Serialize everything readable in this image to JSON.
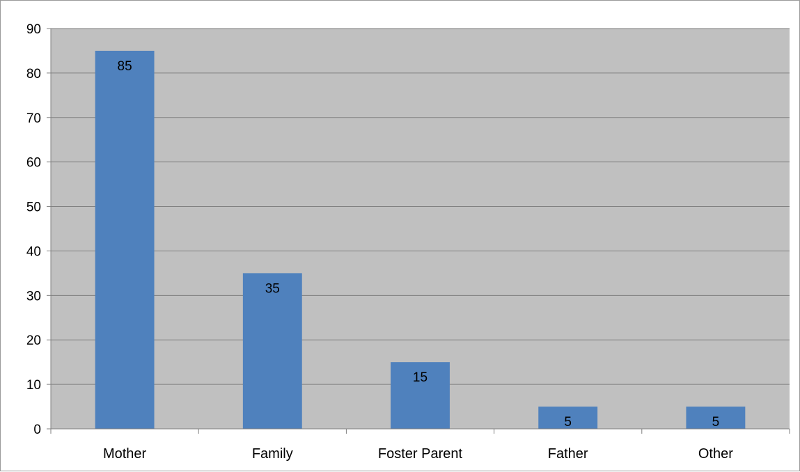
{
  "chart_data": {
    "type": "bar",
    "categories": [
      "Mother",
      "Family",
      "Foster Parent",
      "Father",
      "Other"
    ],
    "values": [
      85,
      35,
      15,
      5,
      5
    ],
    "data_labels": [
      "85",
      "35",
      "15",
      "5",
      "5"
    ],
    "title": "",
    "xlabel": "",
    "ylabel": "",
    "ylim": [
      0,
      90
    ],
    "yticks": [
      "0",
      "10",
      "20",
      "30",
      "40",
      "50",
      "60",
      "70",
      "80",
      "90"
    ],
    "grid": true,
    "legend": "none",
    "colors": {
      "bar": "#4f81bd",
      "plot_background": "#c0c0c0",
      "gridline": "#7f7f7f",
      "axis": "#7f7f7f"
    }
  }
}
